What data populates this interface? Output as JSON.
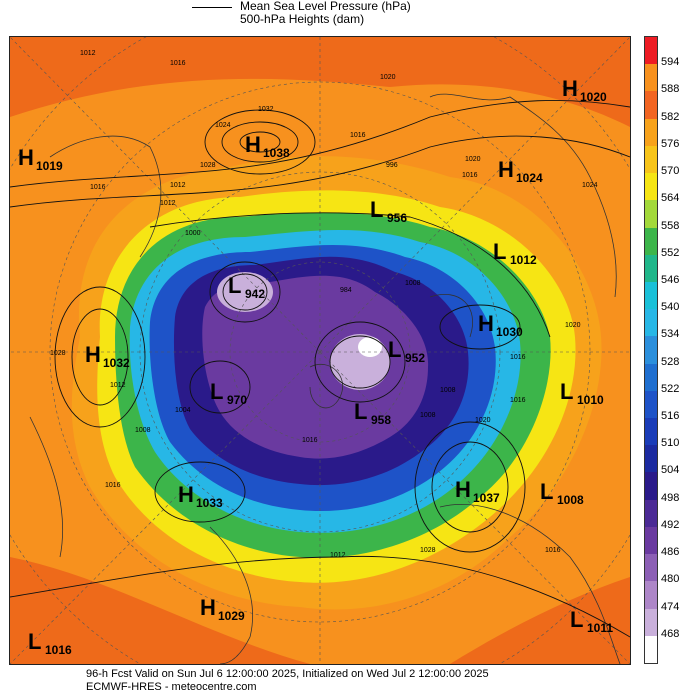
{
  "header": {
    "line1": "Mean Sea Level Pressure (hPa)",
    "line2": "500-hPa Heights (dam)"
  },
  "colors": {
    "orange": "#f7911e",
    "dark_orange": "#ee6a1a",
    "yellow": "#f6e514",
    "green": "#3cb54a",
    "cyan": "#27b7d6",
    "blue": "#1e53c8",
    "navy": "#2a1a8a",
    "purple": "#6a3aa0",
    "lavender": "#c9b0db"
  },
  "colorbar": {
    "levels": [
      "594",
      "588",
      "582",
      "576",
      "570",
      "564",
      "558",
      "552",
      "546",
      "540",
      "534",
      "528",
      "522",
      "516",
      "510",
      "504",
      "498",
      "492",
      "486",
      "480",
      "474",
      "468"
    ],
    "colors": [
      "#ee1c24",
      "#f7911e",
      "#f26522",
      "#f7a21b",
      "#f7c41a",
      "#f6e514",
      "#a3d93b",
      "#3cb54a",
      "#20b78a",
      "#19c0d8",
      "#27b7e6",
      "#2b8fdc",
      "#1f6fd0",
      "#1e53c8",
      "#1a3cb8",
      "#1b2aa0",
      "#2a1a8a",
      "#4b2a95",
      "#6a3aa0",
      "#8c5fb5",
      "#ad86c8",
      "#c9b0db",
      "#ffffff"
    ]
  },
  "systems": [
    {
      "type": "H",
      "value": "1038"
    },
    {
      "type": "H",
      "value": "1019"
    },
    {
      "type": "H",
      "value": "1020"
    },
    {
      "type": "H",
      "value": "1024"
    },
    {
      "type": "L",
      "value": "956"
    },
    {
      "type": "L",
      "value": "1012"
    },
    {
      "type": "L",
      "value": "942"
    },
    {
      "type": "H",
      "value": "1030"
    },
    {
      "type": "H",
      "value": "1032"
    },
    {
      "type": "L",
      "value": "952"
    },
    {
      "type": "L",
      "value": "970"
    },
    {
      "type": "L",
      "value": "1010"
    },
    {
      "type": "L",
      "value": "958"
    },
    {
      "type": "H",
      "value": "1037"
    },
    {
      "type": "L",
      "value": "1008"
    },
    {
      "type": "H",
      "value": "1033"
    },
    {
      "type": "H",
      "value": "1029"
    },
    {
      "type": "L",
      "value": "1011"
    },
    {
      "type": "L",
      "value": "1016"
    }
  ],
  "isobar_labels": [
    "1012",
    "1016",
    "1020",
    "1024",
    "1028",
    "1032",
    "1016",
    "1012",
    "1016",
    "1020",
    "1024",
    "1028",
    "1016",
    "1020",
    "1012",
    "1016",
    "1004",
    "1008",
    "1008",
    "1008",
    "1028",
    "1016",
    "1012",
    "1000",
    "996",
    "984",
    "1016",
    "1012",
    "1016",
    "1020",
    "1016",
    "1008"
  ],
  "footer": {
    "line1": "96-h Fcst Valid on Sun Jul  6 12:00:00 2025, Initialized on Wed Jul  2 12:00:00 2025",
    "line2": "ECMWF-HRES  - meteocentre.com"
  }
}
